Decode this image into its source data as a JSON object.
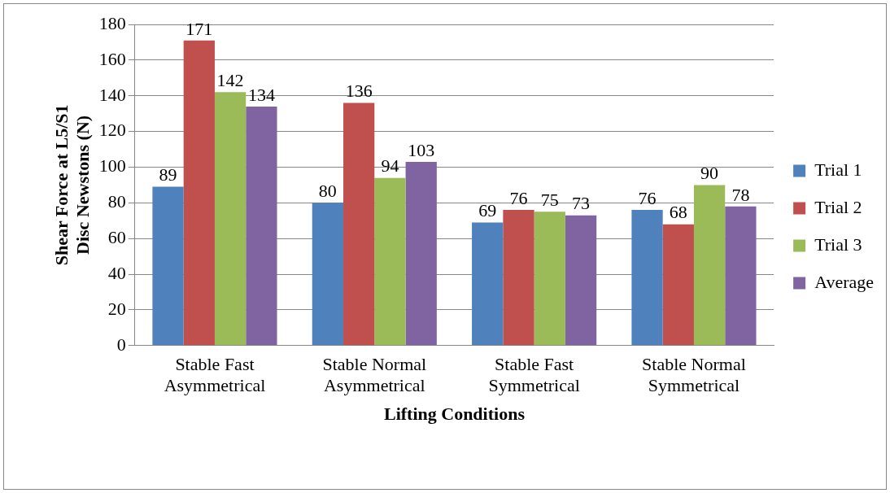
{
  "chart_data": {
    "type": "bar",
    "xlabel": "Lifting Conditions",
    "ylabel": "Shear Force at L5/S1 Disc Newstons (N)",
    "categories": [
      "Stable Fast Asymmetrical",
      "Stable Normal Asymmetrical",
      "Stable Fast Symmetrical",
      "Stable Normal Symmetrical"
    ],
    "series": [
      {
        "name": "Trial 1",
        "color": "#4f81bd",
        "values": [
          89,
          80,
          69,
          76
        ]
      },
      {
        "name": "Trial 2",
        "color": "#c0504d",
        "values": [
          171,
          136,
          76,
          68
        ]
      },
      {
        "name": "Trial 3",
        "color": "#9bbb59",
        "values": [
          142,
          94,
          75,
          90
        ]
      },
      {
        "name": "Average",
        "color": "#8064a2",
        "values": [
          134,
          103,
          73,
          78
        ]
      }
    ],
    "ylim": [
      0,
      180
    ],
    "yticks": [
      0,
      20,
      40,
      60,
      80,
      100,
      120,
      140,
      160,
      180
    ],
    "grid": "y",
    "legend": "right",
    "data_labels": true
  }
}
